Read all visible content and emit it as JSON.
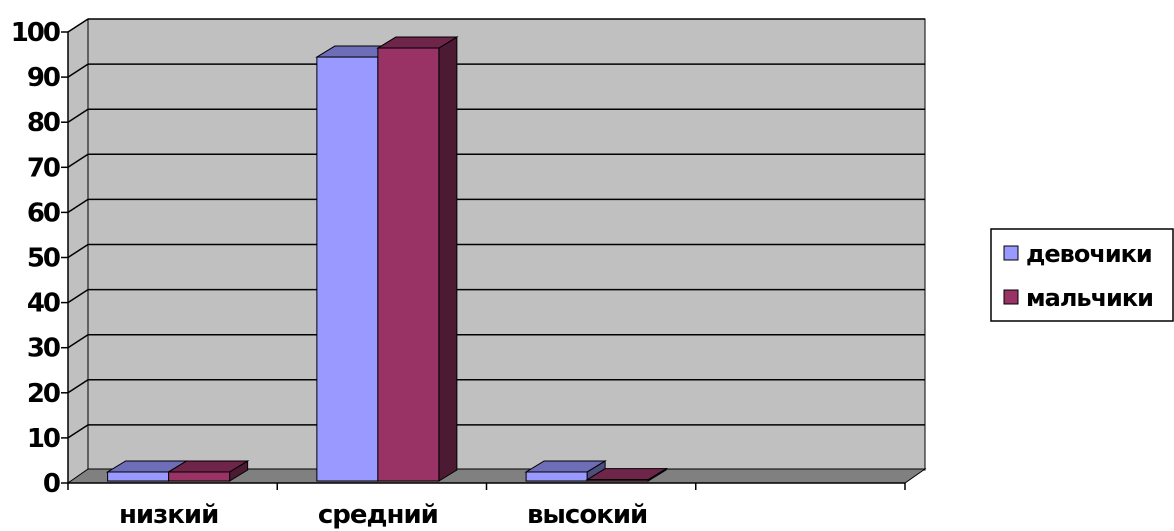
{
  "chart_data": {
    "type": "bar",
    "categories": [
      "низкий",
      "средний",
      "высокий"
    ],
    "series": [
      {
        "name": "девочики",
        "values": [
          2,
          94,
          2
        ],
        "color": "#9999ff"
      },
      {
        "name": "мальчики",
        "values": [
          2,
          96,
          0.3
        ],
        "color": "#993366"
      }
    ],
    "category_slots": 4,
    "ylim": [
      0,
      100
    ],
    "yticks": [
      0,
      10,
      20,
      30,
      40,
      50,
      60,
      70,
      80,
      90,
      100
    ],
    "grid": true,
    "three_d": true,
    "legend_position": "right",
    "background_color": "#c0c0c0",
    "floor_color": "#808080"
  }
}
